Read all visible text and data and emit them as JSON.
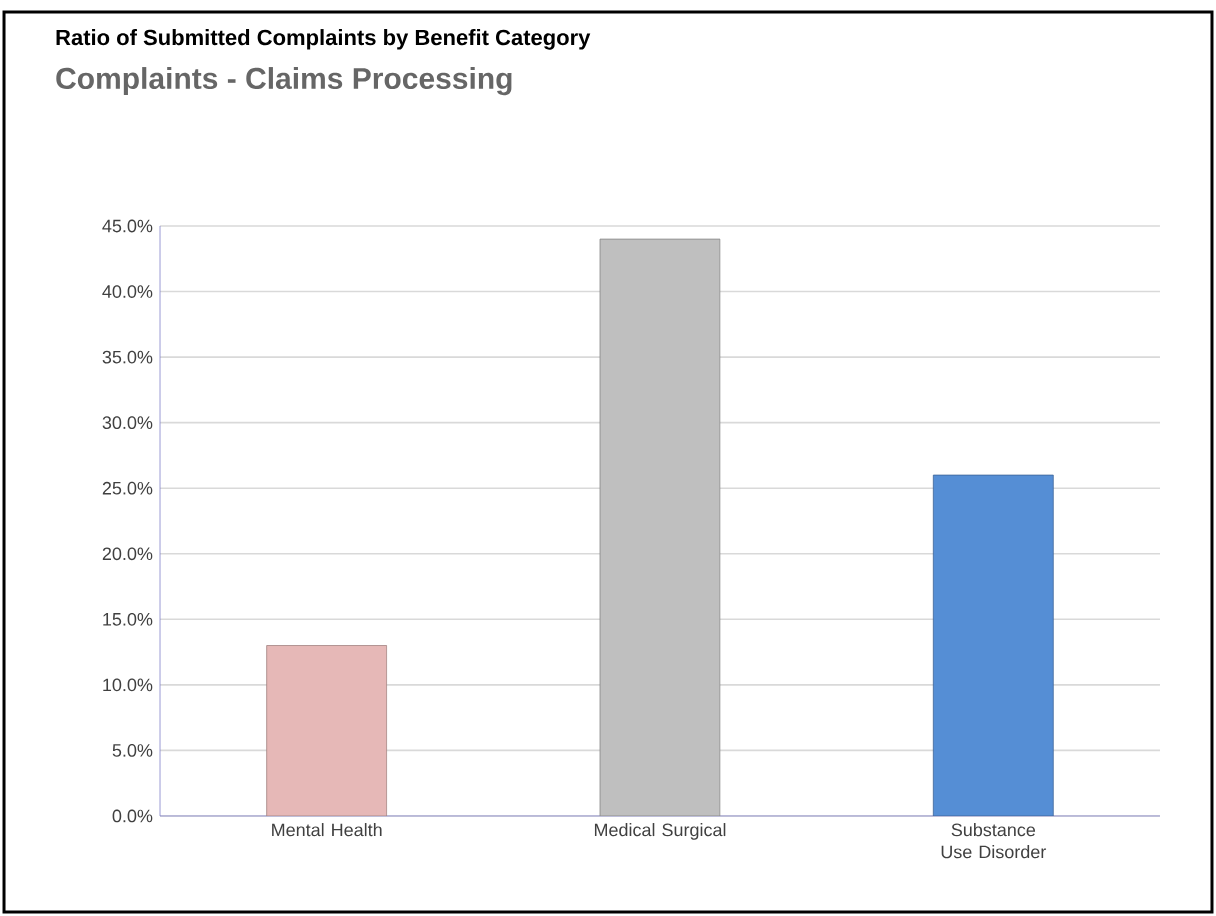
{
  "chart_data": {
    "type": "bar",
    "title": "Ratio of Submitted Complaints by Benefit Category",
    "subtitle": "Complaints - Claims Processing",
    "categories": [
      "Mental Health",
      "Medical Surgical",
      "Substance Use Disorder"
    ],
    "values": [
      13.0,
      44.0,
      26.0
    ],
    "colors": [
      "#e6b8b7",
      "#bfbfbf",
      "#558ed5"
    ],
    "ylim": [
      0,
      45
    ],
    "yticks": [
      {
        "value": 0,
        "label": "0.0%"
      },
      {
        "value": 5,
        "label": "5.0%"
      },
      {
        "value": 10,
        "label": "10.0%"
      },
      {
        "value": 15,
        "label": "15.0%"
      },
      {
        "value": 20,
        "label": "20.0%"
      },
      {
        "value": 25,
        "label": "25.0%"
      },
      {
        "value": 30,
        "label": "30.0%"
      },
      {
        "value": 35,
        "label": "35.0%"
      },
      {
        "value": 40,
        "label": "40.0%"
      },
      {
        "value": 45,
        "label": "45.0%"
      }
    ],
    "grid": "y"
  }
}
